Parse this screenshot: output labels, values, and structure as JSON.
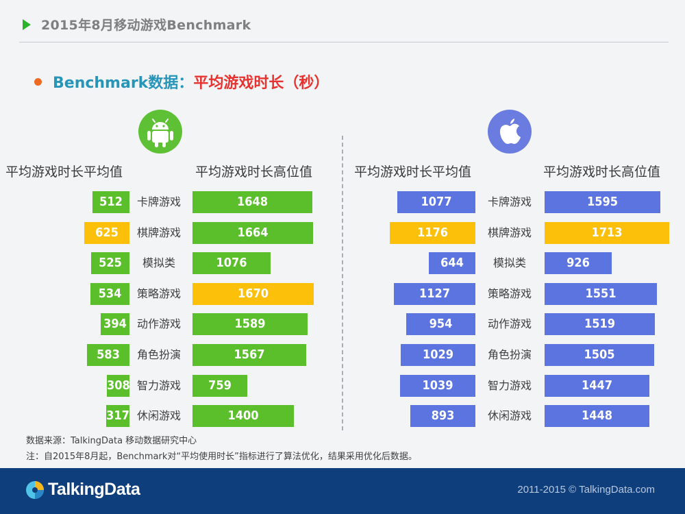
{
  "header": {
    "title": "2015年8月移动游戏Benchmark"
  },
  "subtitle": {
    "part1": "Benchmark数据：",
    "part2": "平均游戏时长（秒）"
  },
  "colors": {
    "green": "#5bbf2c",
    "yellow": "#fcbf0a",
    "blue": "#5b74df"
  },
  "chart_data": [
    {
      "type": "bar",
      "platform": "Android",
      "categories": [
        "卡牌游戏",
        "棋牌游戏",
        "模拟类",
        "策略游戏",
        "动作游戏",
        "角色扮演",
        "智力游戏",
        "休闲游戏"
      ],
      "series": [
        {
          "name": "平均游戏时长平均值",
          "values": [
            512,
            625,
            525,
            534,
            394,
            583,
            308,
            317
          ],
          "highlight_index": 1
        },
        {
          "name": "平均游戏时长高位值",
          "values": [
            1648,
            1664,
            1076,
            1670,
            1589,
            1567,
            759,
            1400
          ],
          "highlight_index": 3
        }
      ],
      "xlim": [
        0,
        1700
      ]
    },
    {
      "type": "bar",
      "platform": "iOS",
      "categories": [
        "卡牌游戏",
        "棋牌游戏",
        "模拟类",
        "策略游戏",
        "动作游戏",
        "角色扮演",
        "智力游戏",
        "休闲游戏"
      ],
      "series": [
        {
          "name": "平均游戏时长平均值",
          "values": [
            1077,
            1176,
            644,
            1127,
            954,
            1029,
            1039,
            893
          ],
          "highlight_index": 1
        },
        {
          "name": "平均游戏时长高位值",
          "values": [
            1595,
            1713,
            926,
            1551,
            1519,
            1505,
            1447,
            1448
          ],
          "highlight_index": 1
        }
      ],
      "xlim": [
        0,
        1700
      ]
    }
  ],
  "notes": {
    "source": "数据来源：TalkingData 移动数据研究中心",
    "note": "注：自2015年8月起，Benchmark对“平均使用时长”指标进行了算法优化，结果采用优化后数据。"
  },
  "footer": {
    "logo": "TalkingData",
    "copyright": "2011-2015 © TalkingData.com"
  }
}
